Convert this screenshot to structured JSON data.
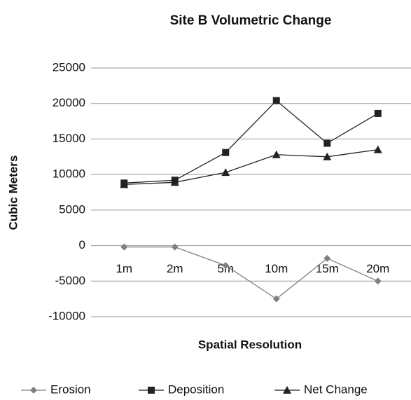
{
  "chart_data": {
    "type": "line",
    "title": "Site B Volumetric Change",
    "x_label": "Spatial Resolution",
    "y_label": "Cubic Meters",
    "categories": [
      "1m",
      "2m",
      "5m",
      "10m",
      "15m",
      "20m"
    ],
    "series": [
      {
        "name": "Erosion",
        "color": "#808080",
        "marker": "diamond",
        "values": [
          -200,
          -200,
          -2800,
          -7500,
          -1800,
          -5000
        ]
      },
      {
        "name": "Deposition",
        "color": "#222222",
        "marker": "square",
        "values": [
          8800,
          9200,
          13100,
          20400,
          14400,
          18600
        ]
      },
      {
        "name": "Net Change",
        "color": "#222222",
        "marker": "triangle",
        "values": [
          8600,
          8900,
          10300,
          12800,
          12500,
          13500
        ]
      }
    ],
    "ylim": [
      -10000,
      25000
    ],
    "yticks": [
      -10000,
      -5000,
      0,
      5000,
      10000,
      15000,
      20000,
      25000
    ],
    "grid": true,
    "legend": "bottom"
  }
}
